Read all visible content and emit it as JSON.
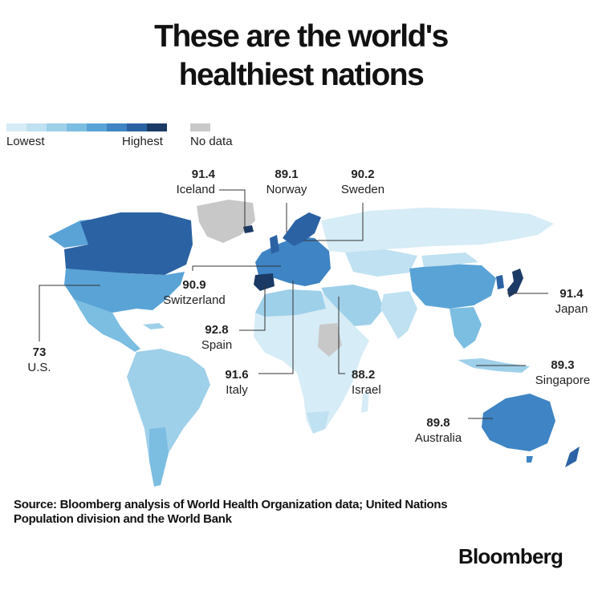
{
  "title": "These are the world's healthiest nations",
  "title_lines": [
    "These are the world's",
    "healthiest nations"
  ],
  "legend": {
    "low_label": "Lowest",
    "high_label": "Highest",
    "nodata_label": "No data",
    "scale_colors": [
      "#d6ecf6",
      "#bfe1f1",
      "#9fd0ea",
      "#7cbde2",
      "#5aa3d6",
      "#3f84c4",
      "#2b62a3",
      "#1b3a66"
    ],
    "nodata_color": "#c8c8c8"
  },
  "callouts": [
    {
      "value": "91.4",
      "country": "Iceland"
    },
    {
      "value": "89.1",
      "country": "Norway"
    },
    {
      "value": "90.2",
      "country": "Sweden"
    },
    {
      "value": "90.9",
      "country": "Switzerland"
    },
    {
      "value": "92.8",
      "country": "Spain"
    },
    {
      "value": "91.6",
      "country": "Italy"
    },
    {
      "value": "88.2",
      "country": "Israel"
    },
    {
      "value": "73",
      "country": "U.S."
    },
    {
      "value": "91.4",
      "country": "Japan"
    },
    {
      "value": "89.3",
      "country": "Singapore"
    },
    {
      "value": "89.8",
      "country": "Australia"
    }
  ],
  "source_lines": [
    "Source: Bloomberg analysis of World Health Organization data; United Nations",
    "Population division and the World Bank"
  ],
  "brand": "Bloomberg"
}
